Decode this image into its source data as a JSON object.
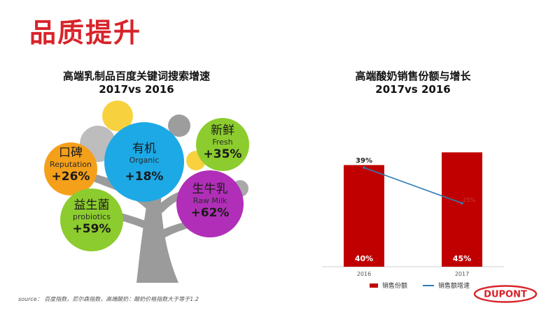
{
  "page": {
    "title": "品质提升"
  },
  "left_chart": {
    "title_line1": "高端乳制品百度关键词搜索增速",
    "title_line2": "2017vs 2016",
    "bubbles": [
      {
        "zh": "口碑",
        "en": "Reputation",
        "pct": "+26%",
        "color": "#f5a01a"
      },
      {
        "zh": "有机",
        "en": "Organic",
        "pct": "+18%",
        "color": "#1ca9e6"
      },
      {
        "zh": "新鲜",
        "en": "Fresh",
        "pct": "+35%",
        "color": "#8ccc2e"
      },
      {
        "zh": "益生菌",
        "en": "probiotics",
        "pct": "+59%",
        "color": "#8ccc2e"
      },
      {
        "zh": "生牛乳",
        "en": "Raw Milk",
        "pct": "+62%",
        "color": "#b12fb8"
      }
    ],
    "source": "source： 百度指数，尼尔森指数，高端酸奶：酸奶价格指数大于等于1.2"
  },
  "chart_data": {
    "type": "bar",
    "title": "高端酸奶销售份额与增长",
    "subtitle": "2017vs 2016",
    "categories": [
      "2016",
      "2017"
    ],
    "series": [
      {
        "name": "销售份额",
        "type": "bar",
        "values": [
          40,
          45
        ],
        "labels": [
          "40%",
          "45%"
        ],
        "color": "#c00000"
      },
      {
        "name": "销售额增速",
        "type": "line",
        "values": [
          39,
          25
        ],
        "labels": [
          "39%",
          "25%"
        ],
        "color": "#2e7cb6"
      }
    ],
    "ylim": [
      0,
      50
    ],
    "grid": false,
    "legend": "bottom"
  },
  "brand": {
    "logo_text": "DUPONT",
    "color": "#d8232a"
  }
}
